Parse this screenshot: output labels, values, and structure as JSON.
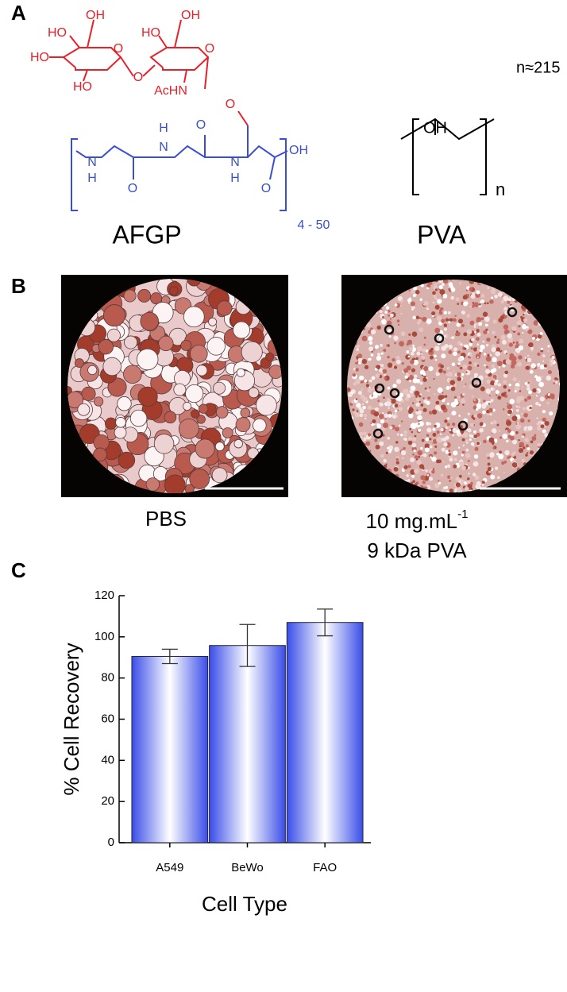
{
  "panel_a": {
    "label": "A",
    "sugar_labels": [
      "OH",
      "HO",
      "HO",
      "HO",
      "O",
      "O",
      "HO",
      "OH",
      "O",
      "AcHN",
      "O"
    ],
    "peptide_labels": [
      "N",
      "H",
      "H",
      "N",
      "O",
      "O",
      "N",
      "H",
      "O",
      "OH"
    ],
    "repeat": "4 - 50",
    "afgp_name": "AFGP",
    "pva_oh": "OH",
    "pva_n": "n",
    "pva_degree": "n≈215",
    "pva_name": "PVA"
  },
  "panel_b": {
    "label": "B",
    "left_caption": "PBS",
    "right_caption": {
      "text": "10 mg.mL",
      "superscript": "-1",
      "line2": "9 kDa PVA"
    }
  },
  "panel_c": {
    "label": "C"
  },
  "chart_data": {
    "type": "bar",
    "x_label": "Cell Type",
    "y_label": "% Cell Recovery",
    "categories": [
      "A549",
      "BeWo",
      "FAO"
    ],
    "values": [
      90.5,
      95.8,
      107
    ],
    "errors": [
      3.5,
      10.2,
      6.5
    ],
    "color": "#3a4de8",
    "ylim": [
      0,
      120
    ],
    "yticks": [
      0,
      20,
      40,
      60,
      80,
      100,
      120
    ]
  }
}
